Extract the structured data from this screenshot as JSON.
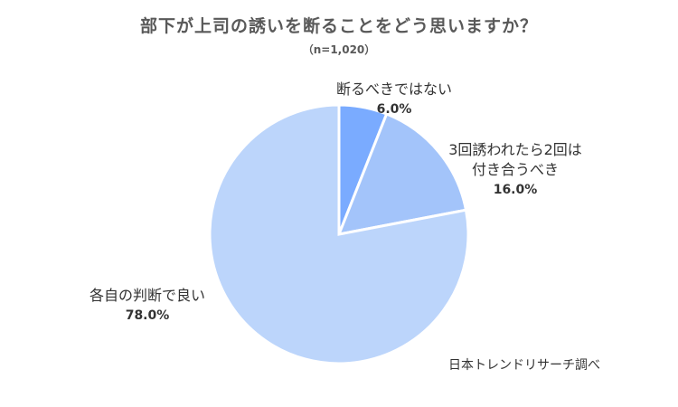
{
  "header": {
    "title": "部下が上司の誘いを断ることをどう思いますか？",
    "subtitle": "（n=1,020）"
  },
  "chart_data": {
    "type": "pie",
    "title": "部下が上司の誘いを断ることをどう思いますか？",
    "subtitle": "（n=1,020）",
    "slices": [
      {
        "label": "断るべきではない",
        "value": 6.0,
        "value_label": "6.0%",
        "color": "#7aabff"
      },
      {
        "label_lines": [
          "3回誘われたら2回は",
          "付き合うべき"
        ],
        "value": 16.0,
        "value_label": "16.0%",
        "color": "#a3c4fa"
      },
      {
        "label": "各自の判断で良い",
        "value": 78.0,
        "value_label": "78.0%",
        "color": "#bcd5fb"
      }
    ],
    "start_angle": "top",
    "direction": "clockwise"
  },
  "footer": {
    "source": "日本トレンドリサーチ調べ"
  }
}
